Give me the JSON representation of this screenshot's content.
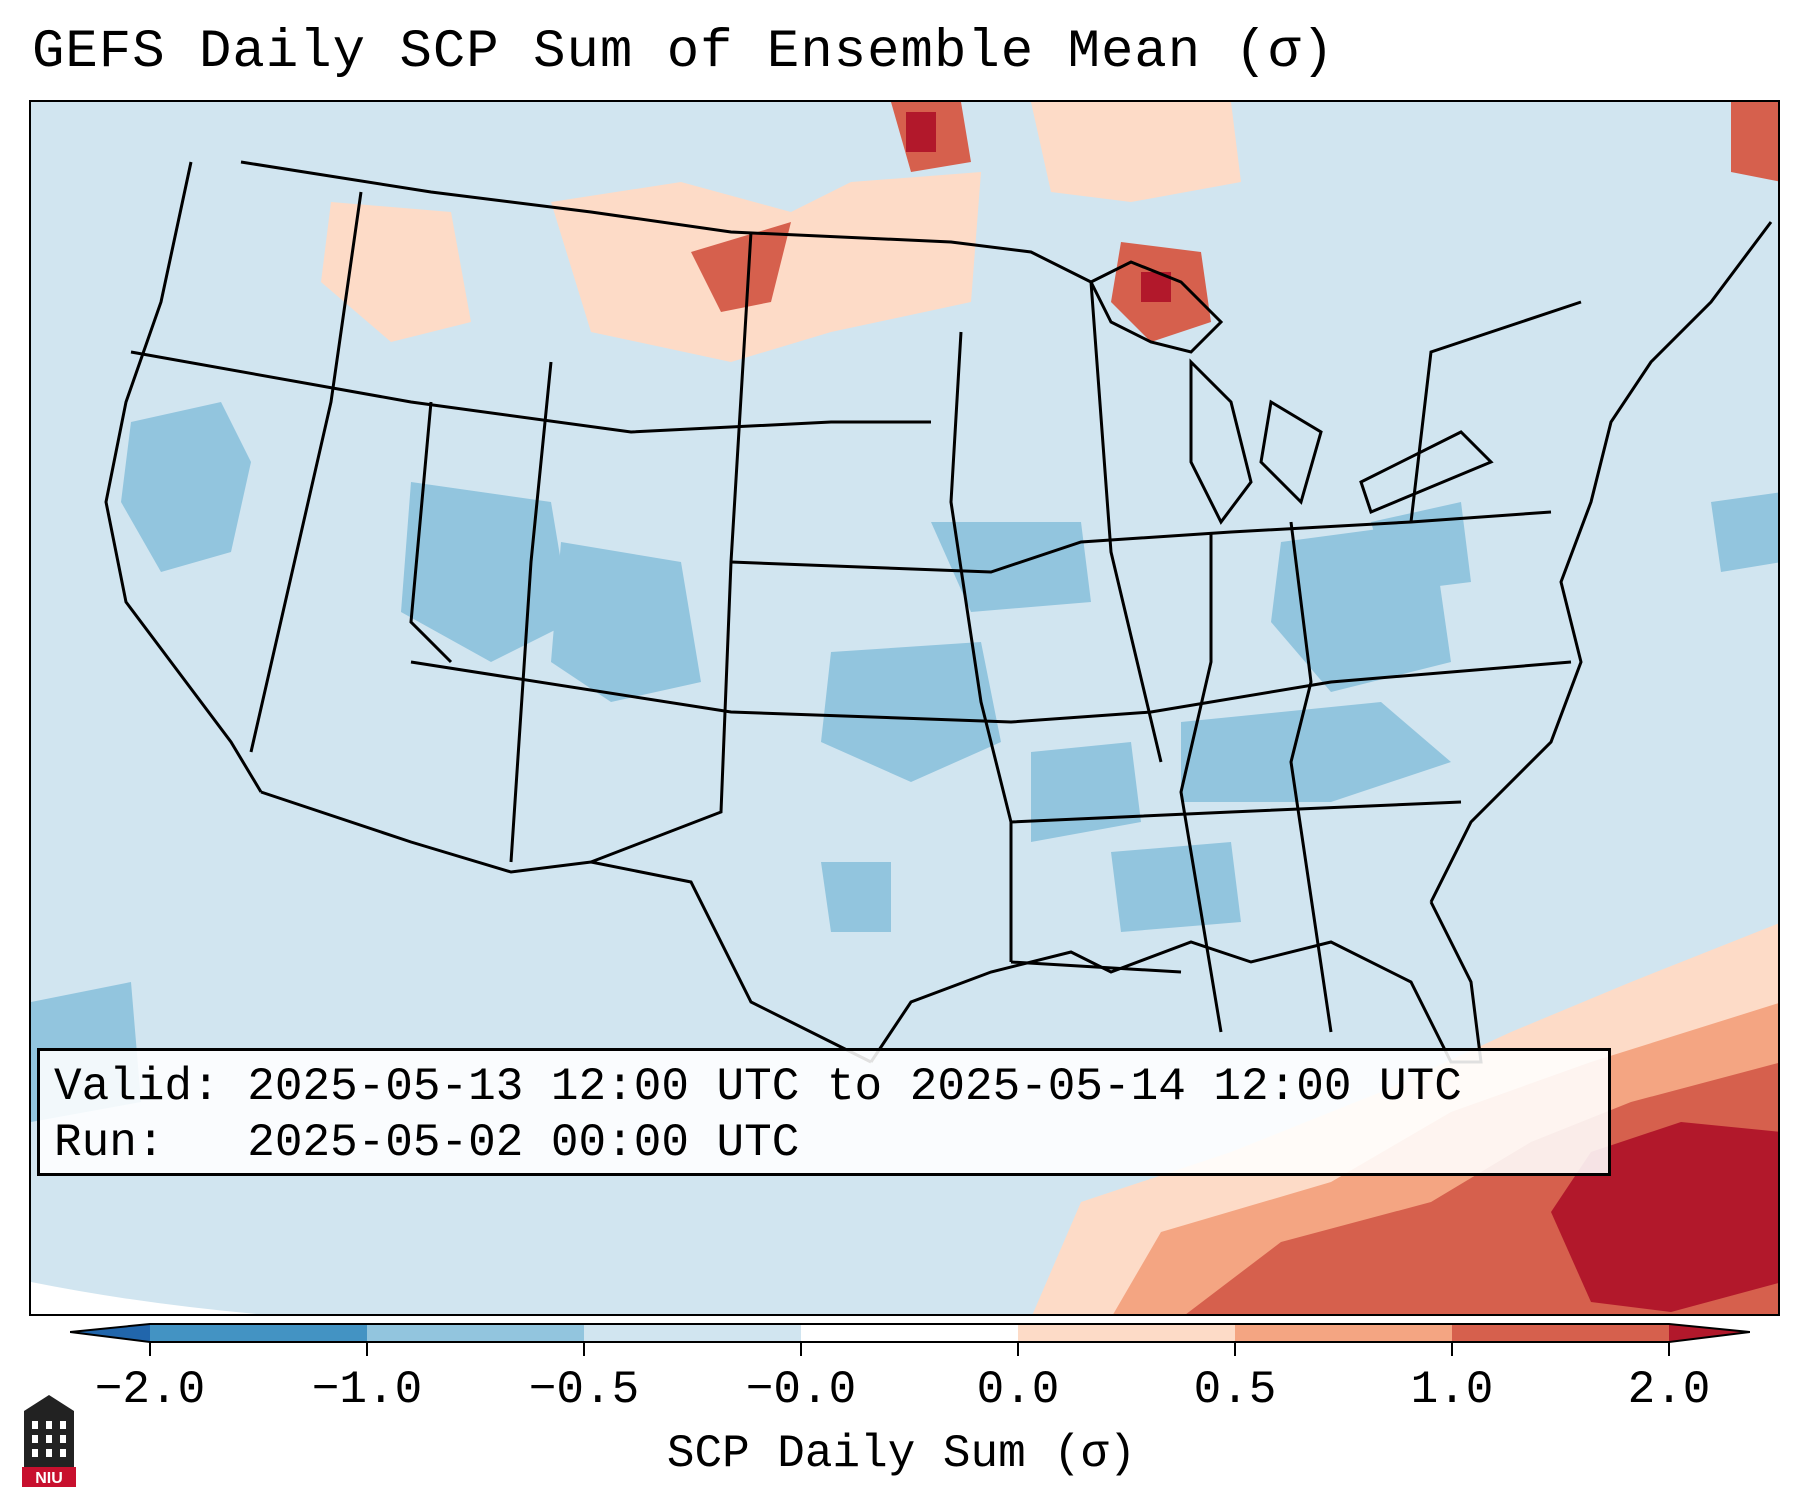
{
  "title": "GEFS Daily SCP Sum of Ensemble Mean (σ)",
  "info": {
    "valid_label": "Valid:",
    "valid_value": "2025-05-13 12:00 UTC to 2025-05-14 12:00 UTC",
    "run_label": "Run:",
    "run_value": "2025-05-02 00:00 UTC"
  },
  "colorbar": {
    "label": "SCP Daily Sum (σ)",
    "ticks": [
      "−2.0",
      "−1.0",
      "−0.5",
      "−0.0",
      "0.0",
      "0.5",
      "1.0",
      "2.0"
    ],
    "colors": [
      "#4393c3",
      "#92c5de",
      "#d1e5f0",
      "#fddbc7",
      "#f4a582",
      "#d6604d",
      "#b2182b"
    ],
    "under_color": "#2166ac",
    "over_color": "#b2182b"
  },
  "logo": {
    "text": "NIU",
    "icon": "university-tower-icon"
  },
  "map_legend_colors": {
    "ocean_default": "#d1e5f0",
    "strong_negative": "#92c5de",
    "weak_positive": "#fddbc7",
    "moderate_positive": "#f4a582",
    "strong_positive": "#d6604d",
    "extreme_positive": "#b2182b"
  }
}
